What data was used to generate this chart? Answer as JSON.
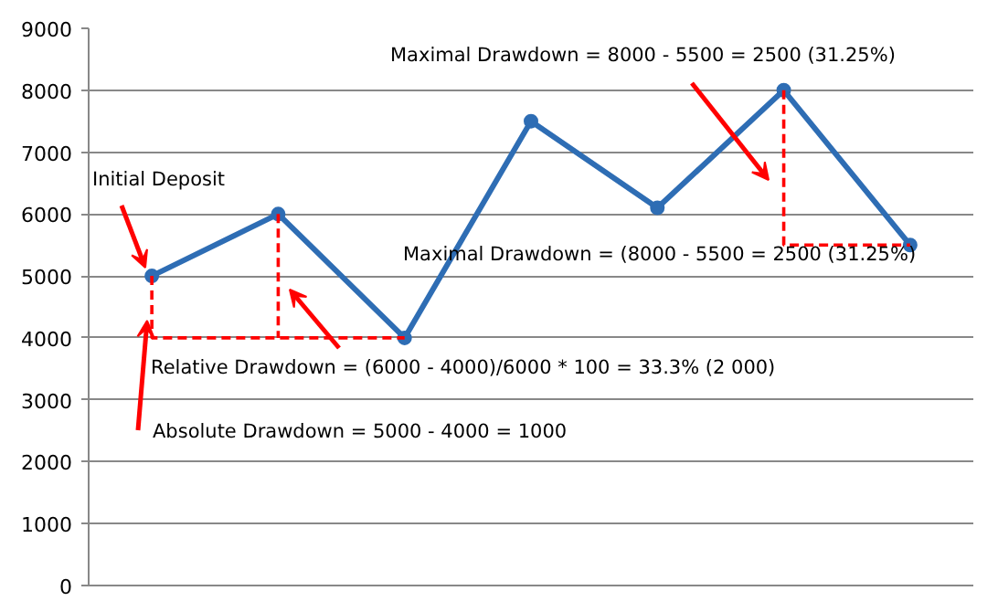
{
  "chart_data": {
    "type": "line",
    "categories": [
      null,
      null,
      null,
      null,
      null,
      null,
      null
    ],
    "ylim": [
      0,
      9000
    ],
    "yticks": [
      0,
      1000,
      2000,
      3000,
      4000,
      5000,
      6000,
      7000,
      8000,
      9000
    ],
    "grid": "y",
    "marker": "circle",
    "line_style": "solid",
    "series": [
      {
        "color": "#2e6db4",
        "values": [
          5000,
          6000,
          4000,
          7500,
          6100,
          8000,
          5500
        ]
      }
    ],
    "annotations": [
      "Maximal Drawdown = 8000 - 5500 = 2500 (31.25%)",
      "Maximal Drawdown = (8000 - 5500 = 2500 (31.25%)",
      "Initial Deposit",
      "Relative Drawdown = (6000 - 4000)/6000 * 100 = 33.3% (2 000)",
      "Absolute Drawdown = 5000 - 4000 = 1000"
    ]
  }
}
